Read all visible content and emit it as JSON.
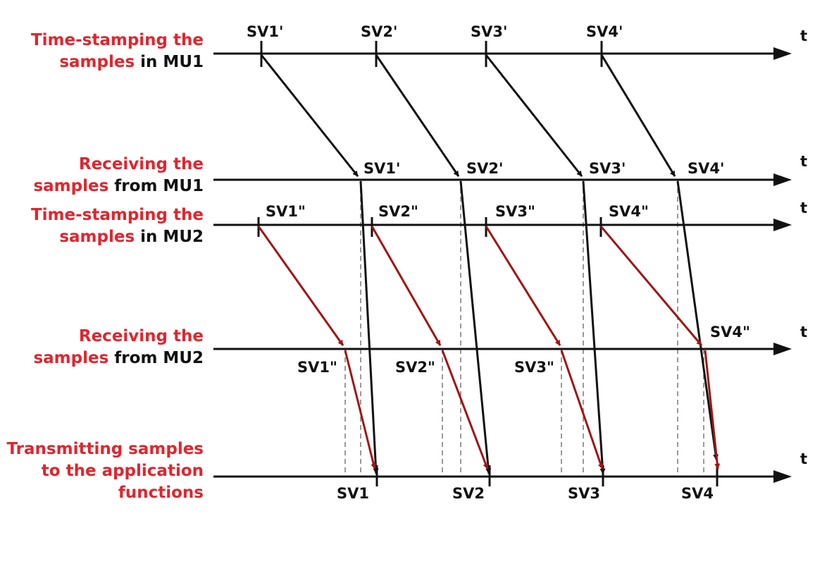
{
  "rows": [
    {
      "red": "Time-stamping the",
      "red2": "samples",
      "black2": " in MU1"
    },
    {
      "red": "Receiving the",
      "red2": "samples",
      "black2": " from MU1"
    },
    {
      "red": "Time-stamping the",
      "red2": "samples",
      "black2": " in MU2"
    },
    {
      "red": "Receiving the",
      "red2": "samples",
      "black2": " from MU2"
    },
    {
      "red": "Transmitting samples",
      "red2": "to the application",
      "red3": "functions"
    }
  ],
  "axis_label": "t",
  "mu1_stamp": [
    "SV1'",
    "SV2'",
    "SV3'",
    "SV4'"
  ],
  "mu1_recv": [
    "SV1'",
    "SV2'",
    "SV3'",
    "SV4'"
  ],
  "mu2_stamp": [
    "SV1\"",
    "SV2\"",
    "SV3\"",
    "SV4\""
  ],
  "mu2_recv": [
    "SV1\"",
    "SV2\"",
    "SV3\"",
    "SV4\""
  ],
  "out": [
    "SV1",
    "SV2",
    "SV3",
    "SV4"
  ],
  "colors": {
    "black_arrow": "#111111",
    "red_arrow": "#a01515",
    "label_red": "#e0252e",
    "dashed": "#9a9a9a"
  }
}
